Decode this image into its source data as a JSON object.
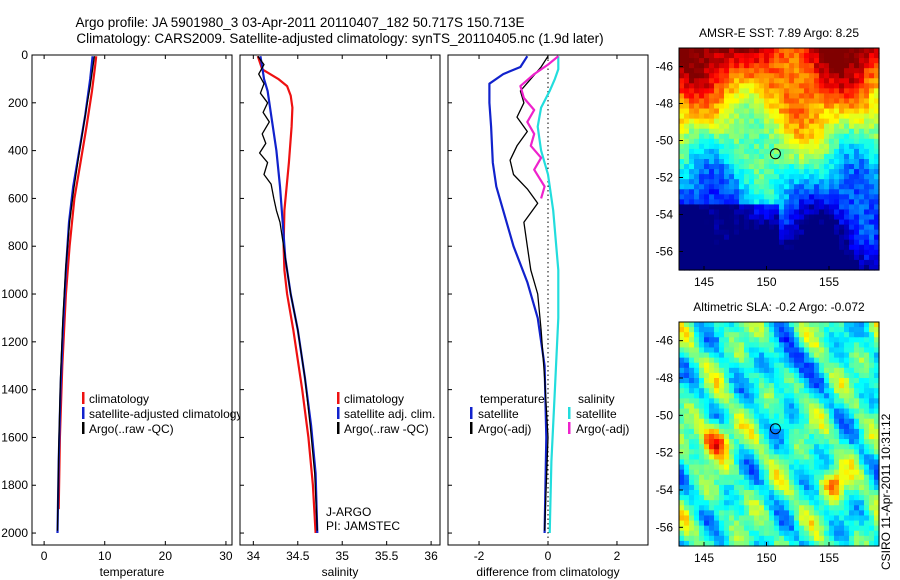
{
  "header": {
    "line1": "Argo profile: JA 5901980_3 03-Apr-2011 20110407_182 50.717S 150.713E",
    "line2": "Climatology: CARS2009. Satellite-adjusted climatology: synTS_20110405.nc (1.9d later)"
  },
  "footer": {
    "stamp": "CSIRO 11-Apr-2011 10:31:12"
  },
  "colors": {
    "red": "#ee1111",
    "blue": "#1122cc",
    "black": "#000000",
    "cyan": "#22dddd",
    "magenta": "#ee22cc"
  },
  "chart_data": [
    {
      "type": "line",
      "id": "temperature",
      "xlabel": "temperature",
      "xlim": [
        -2,
        31
      ],
      "ylim": [
        0,
        2050
      ],
      "xticks": [
        0,
        10,
        20,
        30
      ],
      "xtick_labels": [
        "0",
        "10",
        "20",
        "30"
      ],
      "yticks": [
        0,
        200,
        400,
        600,
        800,
        1000,
        1200,
        1400,
        1600,
        1800,
        2000
      ],
      "ytick_labels": [
        "0",
        "200",
        "400",
        "600",
        "800",
        "1000",
        "1200",
        "1400",
        "1600",
        "1800",
        "2000"
      ],
      "legend": [
        {
          "label": "climatology",
          "color": "red"
        },
        {
          "label": "satellite-adjusted climatology",
          "color": "blue"
        },
        {
          "label": "Argo(..raw -QC)",
          "color": "black"
        }
      ],
      "series": [
        {
          "name": "climatology",
          "color": "red",
          "points": [
            [
              8.6,
              5
            ],
            [
              8.4,
              50
            ],
            [
              7.9,
              150
            ],
            [
              7.0,
              300
            ],
            [
              6.0,
              450
            ],
            [
              5.0,
              600
            ],
            [
              4.2,
              800
            ],
            [
              3.6,
              1000
            ],
            [
              3.0,
              1300
            ],
            [
              2.6,
              1600
            ],
            [
              2.4,
              1900
            ]
          ]
        },
        {
          "name": "satellite-adjusted climatology",
          "color": "blue",
          "points": [
            [
              8.0,
              5
            ],
            [
              7.6,
              100
            ],
            [
              6.8,
              250
            ],
            [
              5.8,
              400
            ],
            [
              4.8,
              550
            ],
            [
              4.1,
              700
            ],
            [
              3.6,
              900
            ],
            [
              3.1,
              1150
            ],
            [
              2.7,
              1400
            ],
            [
              2.4,
              1700
            ],
            [
              2.2,
              2000
            ]
          ]
        },
        {
          "name": "Argo(..raw -QC)",
          "color": "black",
          "points": [
            [
              8.3,
              5
            ],
            [
              8.0,
              60
            ],
            [
              7.6,
              130
            ],
            [
              7.0,
              220
            ],
            [
              6.3,
              330
            ],
            [
              5.6,
              440
            ],
            [
              4.9,
              560
            ],
            [
              4.2,
              700
            ],
            [
              3.6,
              880
            ],
            [
              3.1,
              1100
            ],
            [
              2.7,
              1350
            ],
            [
              2.4,
              1650
            ],
            [
              2.2,
              1990
            ]
          ]
        }
      ]
    },
    {
      "type": "line",
      "id": "salinity",
      "xlabel": "salinity",
      "xlim": [
        33.85,
        36.1
      ],
      "ylim": [
        0,
        2050
      ],
      "xticks": [
        34,
        34.5,
        35,
        35.5,
        36
      ],
      "xtick_labels": [
        "34",
        "34.5",
        "35",
        "35.5",
        "36"
      ],
      "legend": [
        {
          "label": "climatology",
          "color": "red"
        },
        {
          "label": "satellite adj. clim.",
          "color": "blue"
        },
        {
          "label": "Argo(..raw -QC)",
          "color": "black"
        }
      ],
      "annotations": [
        "J-ARGO",
        "PI: JAMSTEC"
      ],
      "series": [
        {
          "name": "climatology",
          "color": "red",
          "points": [
            [
              34.05,
              5
            ],
            [
              34.1,
              60
            ],
            [
              34.28,
              100
            ],
            [
              34.38,
              130
            ],
            [
              34.42,
              170
            ],
            [
              34.44,
              220
            ],
            [
              34.43,
              300
            ],
            [
              34.4,
              450
            ],
            [
              34.35,
              650
            ],
            [
              34.34,
              800
            ],
            [
              34.35,
              900
            ],
            [
              34.38,
              1000
            ],
            [
              34.45,
              1150
            ],
            [
              34.55,
              1400
            ],
            [
              34.62,
              1600
            ],
            [
              34.67,
              1800
            ],
            [
              34.7,
              2000
            ]
          ]
        },
        {
          "name": "satellite adj. clim.",
          "color": "blue",
          "points": [
            [
              34.08,
              5
            ],
            [
              34.1,
              50
            ],
            [
              34.12,
              100
            ],
            [
              34.16,
              150
            ],
            [
              34.2,
              250
            ],
            [
              34.26,
              400
            ],
            [
              34.3,
              550
            ],
            [
              34.33,
              700
            ],
            [
              34.36,
              850
            ],
            [
              34.42,
              1000
            ],
            [
              34.5,
              1150
            ],
            [
              34.58,
              1350
            ],
            [
              34.65,
              1550
            ],
            [
              34.7,
              1750
            ],
            [
              34.72,
              2000
            ]
          ]
        },
        {
          "name": "Argo(..raw -QC)",
          "color": "black",
          "points": [
            [
              34.05,
              5
            ],
            [
              34.12,
              40
            ],
            [
              34.06,
              80
            ],
            [
              34.12,
              120
            ],
            [
              34.08,
              160
            ],
            [
              34.16,
              200
            ],
            [
              34.11,
              240
            ],
            [
              34.18,
              280
            ],
            [
              34.1,
              330
            ],
            [
              34.14,
              370
            ],
            [
              34.07,
              410
            ],
            [
              34.16,
              450
            ],
            [
              34.12,
              500
            ],
            [
              34.2,
              540
            ],
            [
              34.23,
              600
            ],
            [
              34.26,
              650
            ],
            [
              34.3,
              700
            ],
            [
              34.34,
              800
            ],
            [
              34.38,
              900
            ],
            [
              34.42,
              1000
            ],
            [
              34.5,
              1150
            ],
            [
              34.58,
              1350
            ],
            [
              34.64,
              1550
            ],
            [
              34.69,
              1750
            ],
            [
              34.72,
              1990
            ]
          ]
        }
      ]
    },
    {
      "type": "line",
      "id": "difference",
      "xlabel": "difference from climatology",
      "xlim": [
        -2.9,
        2.9
      ],
      "ylim": [
        0,
        2050
      ],
      "xticks": [
        -2,
        0,
        2
      ],
      "xtick_labels": [
        "-2",
        "0",
        "2"
      ],
      "zero_line": 0,
      "legend": [
        {
          "label": "temperature",
          "color": ""
        },
        {
          "label": "satellite",
          "color": "blue"
        },
        {
          "label": "Argo(-adj)",
          "color": "black"
        },
        {
          "label": "salinity",
          "color": ""
        },
        {
          "label": "satellite",
          "color": "cyan"
        },
        {
          "label": "Argo(-adj)",
          "color": "magenta"
        }
      ],
      "series": [
        {
          "name": "temperature satellite",
          "color": "blue",
          "points": [
            [
              -0.6,
              5
            ],
            [
              -0.8,
              50
            ],
            [
              -1.3,
              80
            ],
            [
              -1.7,
              120
            ],
            [
              -1.7,
              200
            ],
            [
              -1.65,
              300
            ],
            [
              -1.6,
              450
            ],
            [
              -1.5,
              550
            ],
            [
              -1.3,
              650
            ],
            [
              -1.0,
              800
            ],
            [
              -0.6,
              950
            ],
            [
              -0.3,
              1100
            ],
            [
              -0.1,
              1300
            ],
            [
              -0.05,
              1600
            ],
            [
              -0.1,
              2000
            ]
          ]
        },
        {
          "name": "temperature Argo(-adj)",
          "color": "black",
          "points": [
            [
              0.0,
              5
            ],
            [
              -0.2,
              50
            ],
            [
              -0.5,
              100
            ],
            [
              -0.8,
              150
            ],
            [
              -0.7,
              200
            ],
            [
              -0.9,
              260
            ],
            [
              -0.6,
              320
            ],
            [
              -0.9,
              380
            ],
            [
              -1.1,
              440
            ],
            [
              -1.0,
              500
            ],
            [
              -0.6,
              560
            ],
            [
              -0.3,
              620
            ],
            [
              -0.7,
              700
            ],
            [
              -0.6,
              800
            ],
            [
              -0.5,
              900
            ],
            [
              -0.3,
              1000
            ],
            [
              -0.2,
              1150
            ],
            [
              -0.1,
              1350
            ],
            [
              0.0,
              1600
            ],
            [
              -0.1,
              1990
            ]
          ]
        },
        {
          "name": "salinity satellite",
          "color": "cyan",
          "points": [
            [
              0.3,
              5
            ],
            [
              0.3,
              60
            ],
            [
              0.2,
              100
            ],
            [
              0.05,
              150
            ],
            [
              -0.2,
              220
            ],
            [
              -0.3,
              300
            ],
            [
              -0.2,
              400
            ],
            [
              0.0,
              500
            ],
            [
              0.15,
              650
            ],
            [
              0.3,
              900
            ],
            [
              0.3,
              1100
            ],
            [
              0.2,
              1400
            ],
            [
              0.1,
              1700
            ],
            [
              0.05,
              2000
            ]
          ]
        },
        {
          "name": "salinity Argo(-adj)",
          "color": "magenta",
          "points": [
            [
              0.3,
              5
            ],
            [
              0.0,
              40
            ],
            [
              -0.4,
              80
            ],
            [
              -0.8,
              130
            ],
            [
              -0.7,
              180
            ],
            [
              -0.4,
              230
            ],
            [
              -0.6,
              280
            ],
            [
              -0.4,
              330
            ],
            [
              -0.5,
              380
            ],
            [
              -0.2,
              430
            ],
            [
              -0.4,
              480
            ],
            [
              -0.1,
              550
            ],
            [
              -0.2,
              600
            ]
          ]
        }
      ]
    },
    {
      "type": "heatmap",
      "id": "sst-map",
      "title": "AMSR-E SST: 7.89 Argo: 8.25",
      "xlim": [
        143,
        159
      ],
      "ylim": [
        -57,
        -45
      ],
      "xticks": [
        145,
        150,
        155
      ],
      "xtick_labels": [
        "145",
        "150",
        "155"
      ],
      "yticks": [
        -46,
        -48,
        -50,
        -52,
        -54,
        -56
      ],
      "ytick_labels": [
        "-46",
        "-48",
        "-50",
        "-52",
        "-54",
        "-56"
      ],
      "marker": [
        150.713,
        -50.717
      ]
    },
    {
      "type": "heatmap",
      "id": "sla-map",
      "title": "Altimetric SLA: -0.2 Argo: -0.072",
      "xlim": [
        143,
        159
      ],
      "ylim": [
        -57,
        -45
      ],
      "xticks": [
        145,
        150,
        155
      ],
      "xtick_labels": [
        "145",
        "150",
        "155"
      ],
      "yticks": [
        -46,
        -48,
        -50,
        -52,
        -54,
        -56
      ],
      "ytick_labels": [
        "-46",
        "-48",
        "-50",
        "-52",
        "-54",
        "-56"
      ],
      "marker": [
        150.713,
        -50.717
      ]
    }
  ]
}
